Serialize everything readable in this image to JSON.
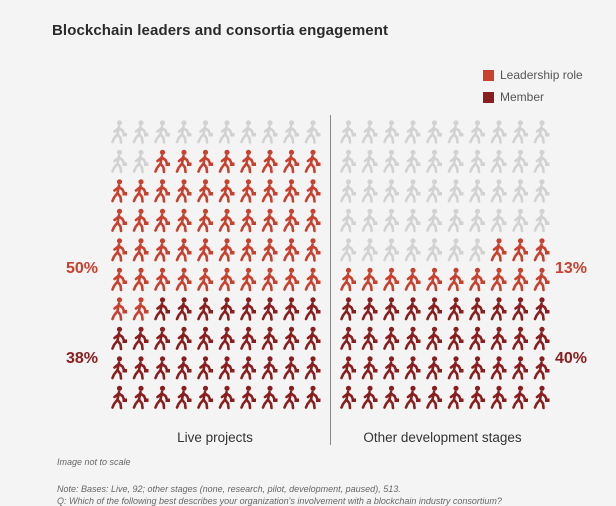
{
  "title": "Blockchain leaders and consortia engagement",
  "legend": [
    {
      "label": "Leadership role",
      "color": "#c8412f"
    },
    {
      "label": "Member",
      "color": "#8a1d1d"
    }
  ],
  "colors": {
    "inactive": "#d2d2d2",
    "leadership": "#c8412f",
    "member": "#8a1d1d"
  },
  "chart_data": {
    "type": "pictogram",
    "title": "Blockchain leaders and consortia engagement",
    "unit": "percent of respondents",
    "icons_per_group": 100,
    "series_names": [
      "Leadership role",
      "Member"
    ],
    "groups": [
      {
        "name": "Live projects",
        "leadership_pct": 50,
        "member_pct": 38,
        "leadership_label": "50%",
        "member_label": "38%"
      },
      {
        "name": "Other development stages",
        "leadership_pct": 13,
        "member_pct": 40,
        "leadership_label": "13%",
        "member_label": "40%"
      }
    ]
  },
  "note": "Image not to scale",
  "footnote_bases": "Note: Bases: Live, 92; other stages (none, research, pilot, development, paused), 513.",
  "footnote_question": "Q: Which of the following best describes your organization's involvement with a blockchain industry consortium?"
}
